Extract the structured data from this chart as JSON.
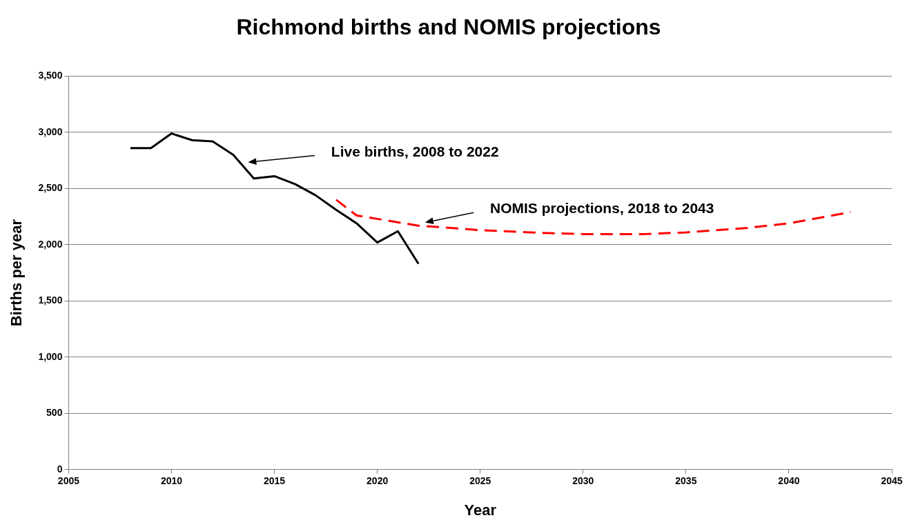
{
  "chart_data": {
    "type": "line",
    "title": "Richmond births and NOMIS projections",
    "xlabel": "Year",
    "ylabel": "Births per year",
    "xlim": [
      2005,
      2045
    ],
    "xticks": [
      2005,
      2010,
      2015,
      2020,
      2025,
      2030,
      2035,
      2040,
      2045
    ],
    "ylim": [
      0,
      3500
    ],
    "yticks": [
      {
        "value": 0,
        "label": "0"
      },
      {
        "value": 500,
        "label": "500"
      },
      {
        "value": 1000,
        "label": "1,000"
      },
      {
        "value": 1500,
        "label": "1,500"
      },
      {
        "value": 2000,
        "label": "2,000"
      },
      {
        "value": 2500,
        "label": "2,500"
      },
      {
        "value": 3000,
        "label": "3,000"
      },
      {
        "value": 3500,
        "label": "3,500"
      }
    ],
    "grid": "y",
    "legend": false,
    "marker": "none",
    "series": [
      {
        "color": "#000000",
        "line_style": "solid",
        "x": [
          2008,
          2009,
          2010,
          2011,
          2012,
          2013,
          2014,
          2015,
          2016,
          2017,
          2018,
          2019,
          2020,
          2021,
          2022
        ],
        "values": [
          2860,
          2860,
          2990,
          2930,
          2920,
          2800,
          2590,
          2610,
          2540,
          2440,
          2310,
          2190,
          2020,
          2120,
          1830
        ]
      },
      {
        "color": "#ff0000",
        "line_style": "dashed",
        "x": [
          2018,
          2019,
          2020,
          2022,
          2025,
          2028,
          2030,
          2033,
          2035,
          2038,
          2040,
          2043
        ],
        "values": [
          2400,
          2260,
          2230,
          2170,
          2130,
          2105,
          2095,
          2095,
          2110,
          2150,
          2190,
          2290
        ]
      }
    ],
    "annotations": [
      "Live births, 2008 to 2022",
      "NOMIS projections, 2018 to 2043"
    ]
  }
}
